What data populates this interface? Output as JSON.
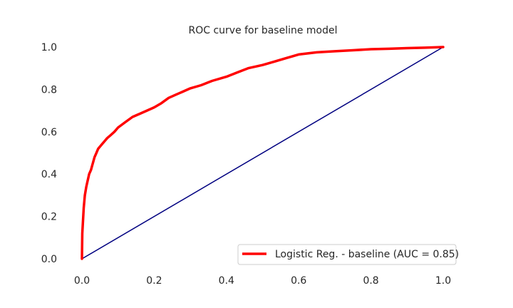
{
  "chart_data": {
    "type": "line",
    "title": "ROC curve for baseline model",
    "xlabel": "",
    "ylabel": "",
    "xlim": [
      0.0,
      1.0
    ],
    "ylim": [
      0.0,
      1.0
    ],
    "grid": false,
    "x_ticks": [
      "0.0",
      "0.2",
      "0.4",
      "0.6",
      "0.8",
      "1.0"
    ],
    "y_ticks": [
      "0.0",
      "0.2",
      "0.4",
      "0.6",
      "0.8",
      "1.0"
    ],
    "legend_position": "bottom-right",
    "series": [
      {
        "name": "Logistic Reg. - baseline (AUC = 0.85)",
        "color": "#ff0000",
        "x": [
          0.0,
          0.001,
          0.003,
          0.005,
          0.008,
          0.012,
          0.016,
          0.02,
          0.025,
          0.03,
          0.035,
          0.04,
          0.045,
          0.05,
          0.06,
          0.07,
          0.08,
          0.09,
          0.1,
          0.12,
          0.14,
          0.16,
          0.18,
          0.2,
          0.22,
          0.24,
          0.26,
          0.28,
          0.3,
          0.33,
          0.36,
          0.4,
          0.43,
          0.46,
          0.5,
          0.53,
          0.56,
          0.6,
          0.65,
          0.7,
          0.75,
          0.8,
          0.85,
          0.9,
          0.95,
          1.0
        ],
        "y": [
          0.0,
          0.12,
          0.18,
          0.24,
          0.3,
          0.34,
          0.37,
          0.4,
          0.42,
          0.45,
          0.48,
          0.5,
          0.52,
          0.53,
          0.55,
          0.57,
          0.585,
          0.6,
          0.62,
          0.645,
          0.67,
          0.685,
          0.7,
          0.715,
          0.735,
          0.76,
          0.775,
          0.79,
          0.805,
          0.82,
          0.84,
          0.86,
          0.88,
          0.9,
          0.915,
          0.93,
          0.945,
          0.965,
          0.975,
          0.98,
          0.985,
          0.99,
          0.992,
          0.995,
          0.997,
          1.0
        ]
      },
      {
        "name": "",
        "color": "#000080",
        "x": [
          0.0,
          1.0
        ],
        "y": [
          0.0,
          1.0
        ]
      }
    ]
  }
}
